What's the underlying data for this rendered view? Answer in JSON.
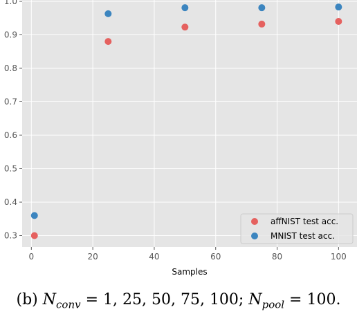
{
  "chart_data": {
    "type": "scatter",
    "xlabel": "Samples",
    "ylabel": "",
    "xlim": [
      -3,
      106
    ],
    "ylim": [
      0.266,
      1.004
    ],
    "xticks": [
      0,
      20,
      40,
      60,
      80,
      100
    ],
    "yticks": [
      0.3,
      0.4,
      0.5,
      0.6,
      0.7,
      0.8,
      0.9,
      1.0
    ],
    "xtick_labels": [
      "0",
      "20",
      "40",
      "60",
      "80",
      "100"
    ],
    "ytick_labels": [
      "0.3",
      "0.4",
      "0.5",
      "0.6",
      "0.7",
      "0.8",
      "0.9",
      "1.0"
    ],
    "grid": true,
    "legend_position": "lower-right",
    "series": [
      {
        "name": "affNIST test acc.",
        "color": "#e5615f",
        "x": [
          1,
          25,
          50,
          75,
          100
        ],
        "y": [
          0.3,
          0.88,
          0.923,
          0.932,
          0.94
        ]
      },
      {
        "name": "MNIST test acc.",
        "color": "#3c85bf",
        "x": [
          1,
          25,
          50,
          75,
          100
        ],
        "y": [
          0.36,
          0.963,
          0.981,
          0.981,
          0.983
        ]
      }
    ]
  },
  "caption": "(b) N_conv = 1, 25, 50, 75, 100; N_pool = 100."
}
